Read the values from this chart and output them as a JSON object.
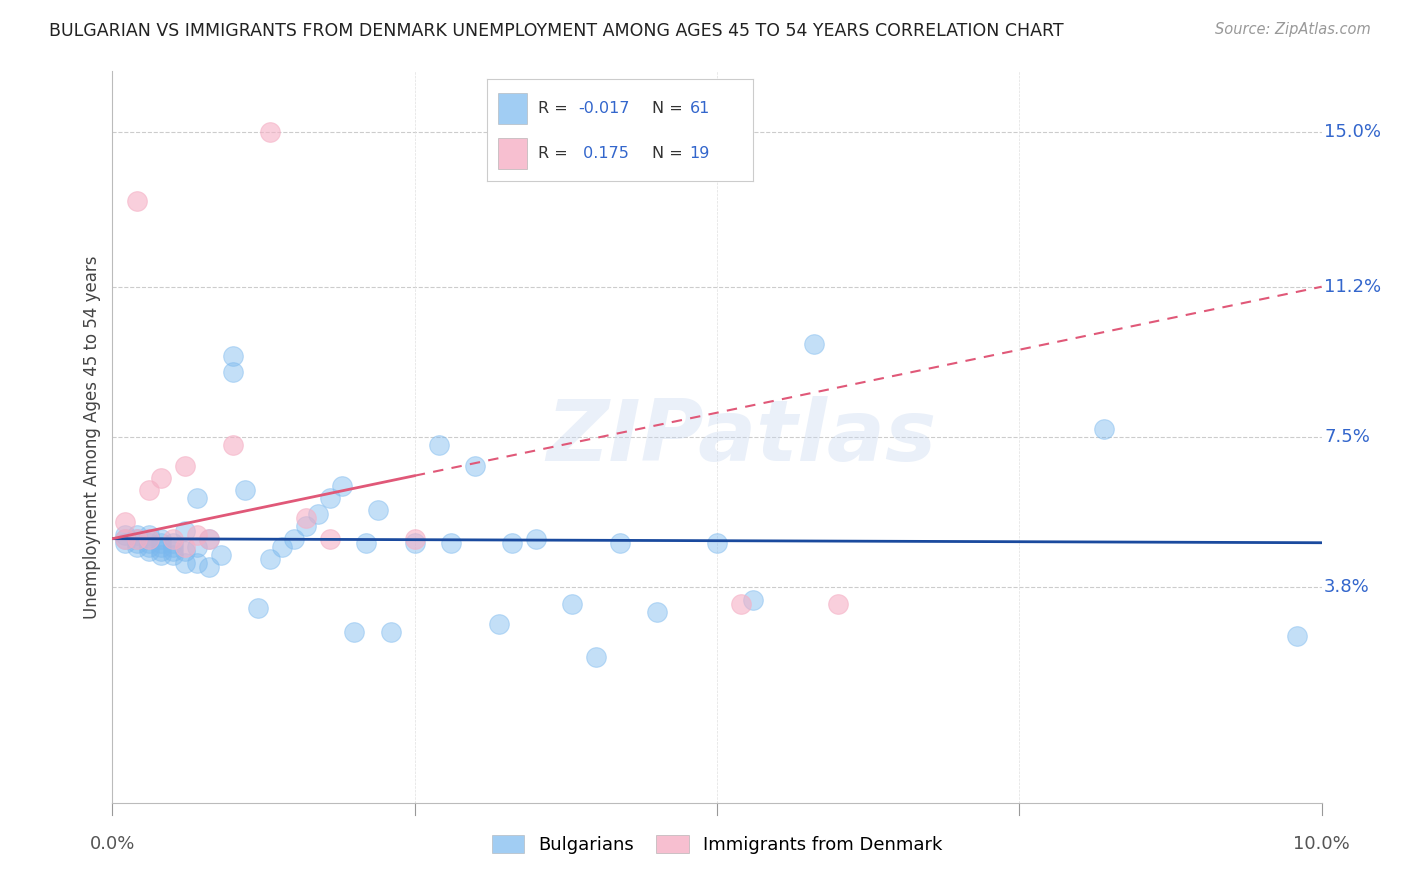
{
  "title": "BULGARIAN VS IMMIGRANTS FROM DENMARK UNEMPLOYMENT AMONG AGES 45 TO 54 YEARS CORRELATION CHART",
  "source": "Source: ZipAtlas.com",
  "ylabel": "Unemployment Among Ages 45 to 54 years",
  "xlim": [
    0.0,
    0.1
  ],
  "ylim": [
    -0.015,
    0.165
  ],
  "ytick_values": [
    0.038,
    0.075,
    0.112,
    0.15
  ],
  "ytick_labels": [
    "3.8%",
    "7.5%",
    "11.2%",
    "15.0%"
  ],
  "blue_scatter_color": "#7ab8ee",
  "pink_scatter_color": "#f5b0c5",
  "blue_line_color": "#1a4a9e",
  "pink_line_color": "#e05878",
  "r_blue": "-0.017",
  "n_blue": "61",
  "r_pink": "0.175",
  "n_pink": "19",
  "watermark": "ZIPatlas",
  "legend_bottom_labels": [
    "Bulgarians",
    "Immigrants from Denmark"
  ],
  "bulgarians_x": [
    0.001,
    0.001,
    0.001,
    0.002,
    0.002,
    0.002,
    0.002,
    0.003,
    0.003,
    0.003,
    0.003,
    0.003,
    0.004,
    0.004,
    0.004,
    0.004,
    0.004,
    0.005,
    0.005,
    0.005,
    0.005,
    0.006,
    0.006,
    0.006,
    0.007,
    0.007,
    0.007,
    0.008,
    0.008,
    0.009,
    0.01,
    0.01,
    0.011,
    0.012,
    0.013,
    0.014,
    0.015,
    0.016,
    0.017,
    0.018,
    0.019,
    0.02,
    0.021,
    0.022,
    0.023,
    0.025,
    0.027,
    0.028,
    0.03,
    0.032,
    0.033,
    0.035,
    0.038,
    0.04,
    0.042,
    0.045,
    0.05,
    0.053,
    0.058,
    0.082,
    0.098
  ],
  "bulgarians_y": [
    0.049,
    0.05,
    0.051,
    0.048,
    0.049,
    0.05,
    0.051,
    0.047,
    0.048,
    0.049,
    0.05,
    0.051,
    0.046,
    0.047,
    0.048,
    0.049,
    0.05,
    0.046,
    0.047,
    0.048,
    0.049,
    0.044,
    0.047,
    0.052,
    0.044,
    0.048,
    0.06,
    0.043,
    0.05,
    0.046,
    0.091,
    0.095,
    0.062,
    0.033,
    0.045,
    0.048,
    0.05,
    0.053,
    0.056,
    0.06,
    0.063,
    0.027,
    0.049,
    0.057,
    0.027,
    0.049,
    0.073,
    0.049,
    0.068,
    0.029,
    0.049,
    0.05,
    0.034,
    0.021,
    0.049,
    0.032,
    0.049,
    0.035,
    0.098,
    0.077,
    0.026
  ],
  "denmark_x": [
    0.001,
    0.001,
    0.002,
    0.002,
    0.003,
    0.003,
    0.004,
    0.005,
    0.006,
    0.006,
    0.007,
    0.008,
    0.01,
    0.013,
    0.016,
    0.018,
    0.025,
    0.052,
    0.06
  ],
  "denmark_y": [
    0.05,
    0.054,
    0.133,
    0.05,
    0.062,
    0.05,
    0.065,
    0.05,
    0.048,
    0.068,
    0.051,
    0.05,
    0.073,
    0.15,
    0.055,
    0.05,
    0.05,
    0.034,
    0.034
  ],
  "pink_line_x0": 0.0,
  "pink_line_y0": 0.05,
  "pink_line_x1": 0.1,
  "pink_line_y1": 0.112,
  "blue_line_x0": 0.0,
  "blue_line_y0": 0.05,
  "blue_line_x1": 0.1,
  "blue_line_y1": 0.049
}
